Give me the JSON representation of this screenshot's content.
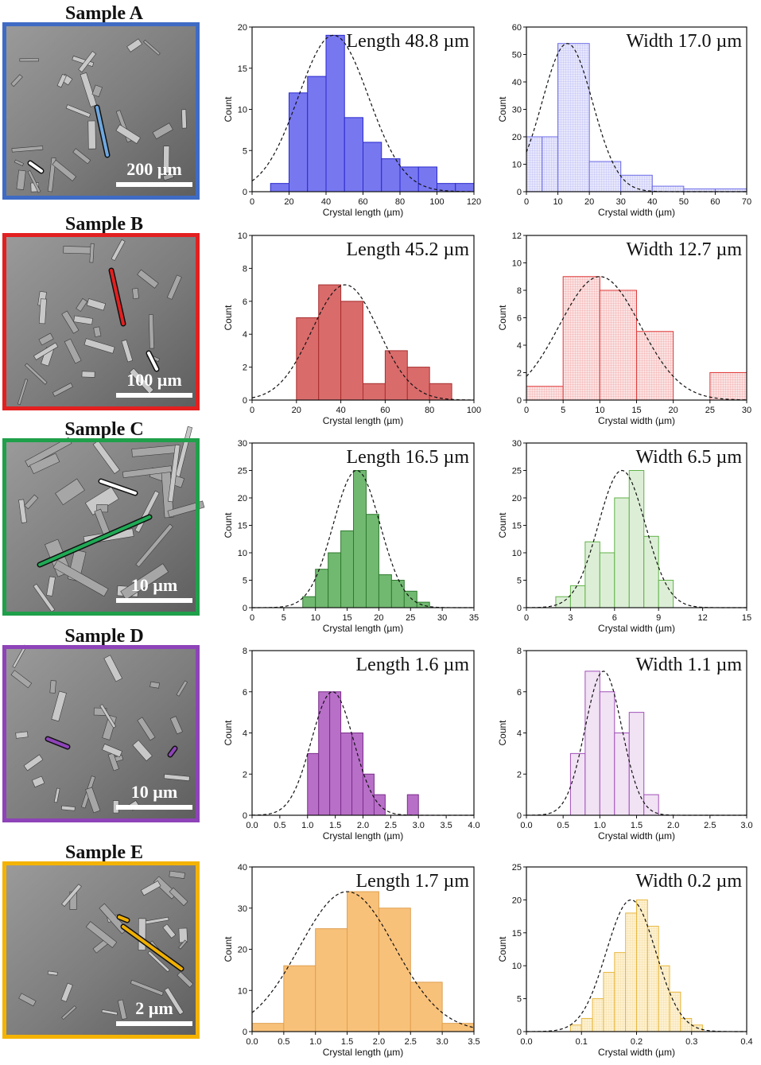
{
  "figure": {
    "ylabel": "Count",
    "xlabel_length": "Crystal length (µm)",
    "xlabel_width": "Crystal width (µm)"
  },
  "samples": [
    {
      "title": "Sample A",
      "color": "#3f6bc4",
      "arrow_color": "#6fa8e0",
      "scale_bar": "200 µm",
      "length": {
        "label": "Length 48.8 µm",
        "fill": "#7777f0",
        "stroke": "#2a2acc",
        "hatch": false,
        "xlim": [
          0,
          120
        ],
        "ylim": [
          0,
          20
        ],
        "xticks": [
          0,
          20,
          40,
          60,
          80,
          100,
          120
        ],
        "yticks": [
          0,
          5,
          10,
          15,
          20
        ],
        "edges": [
          10,
          20,
          30,
          40,
          50,
          60,
          70,
          80,
          90,
          100,
          110,
          120
        ],
        "counts": [
          1,
          12,
          14,
          19,
          9,
          6,
          4,
          3,
          3,
          1,
          1
        ],
        "fit": {
          "mean": 44,
          "sd": 19,
          "peak": 19
        }
      },
      "width": {
        "label": "Width 17.0 µm",
        "fill": "#e8e8fc",
        "stroke": "#6a6ae8",
        "hatch": true,
        "xlim": [
          0,
          70
        ],
        "ylim": [
          0,
          60
        ],
        "xticks": [
          0,
          10,
          20,
          30,
          40,
          50,
          60,
          70
        ],
        "yticks": [
          0,
          10,
          20,
          30,
          40,
          50,
          60
        ],
        "edges": [
          0,
          5,
          10,
          20,
          30,
          40,
          50,
          60,
          70
        ],
        "counts": [
          20,
          20,
          54,
          11,
          6,
          2,
          1,
          1
        ],
        "fit": {
          "mean": 13,
          "sd": 8,
          "peak": 54
        }
      }
    },
    {
      "title": "Sample B",
      "color": "#e32020",
      "arrow_color": "#e32020",
      "scale_bar": "100 µm",
      "length": {
        "label": "Length 45.2 µm",
        "fill": "#d96b6b",
        "stroke": "#a83030",
        "hatch": false,
        "xlim": [
          0,
          100
        ],
        "ylim": [
          0,
          10
        ],
        "xticks": [
          0,
          20,
          40,
          60,
          80,
          100
        ],
        "yticks": [
          0,
          2,
          4,
          6,
          8,
          10
        ],
        "edges": [
          20,
          30,
          40,
          50,
          60,
          70,
          80,
          90
        ],
        "counts": [
          5,
          7,
          6,
          1,
          3,
          2,
          1
        ],
        "fit": {
          "mean": 42,
          "sd": 15,
          "peak": 7
        }
      },
      "width": {
        "label": "Width 12.7 µm",
        "fill": "#fbe3e3",
        "stroke": "#e03a3a",
        "hatch": true,
        "xlim": [
          0,
          30
        ],
        "ylim": [
          0,
          12
        ],
        "xticks": [
          0,
          5,
          10,
          15,
          20,
          25,
          30
        ],
        "yticks": [
          0,
          2,
          4,
          6,
          8,
          10,
          12
        ],
        "edges": [
          0,
          5,
          10,
          15,
          20,
          25,
          30
        ],
        "counts": [
          1,
          9,
          8,
          5,
          0,
          2
        ],
        "fit": {
          "mean": 10,
          "sd": 5.5,
          "peak": 9
        }
      }
    },
    {
      "title": "Sample C",
      "color": "#1fa04a",
      "arrow_color": "#1faa55",
      "scale_bar": "10 µm",
      "length": {
        "label": "Length 16.5 µm",
        "fill": "#71b971",
        "stroke": "#2f7a2f",
        "hatch": false,
        "xlim": [
          0,
          35
        ],
        "ylim": [
          0,
          30
        ],
        "xticks": [
          0,
          5,
          10,
          15,
          20,
          25,
          30,
          35
        ],
        "yticks": [
          0,
          5,
          10,
          15,
          20,
          25,
          30
        ],
        "edges": [
          8,
          10,
          12,
          14,
          16,
          18,
          20,
          22,
          24,
          26,
          28
        ],
        "counts": [
          2,
          7,
          10,
          14,
          25,
          17,
          6,
          5,
          3,
          1
        ],
        "fit": {
          "mean": 16.5,
          "sd": 3.7,
          "peak": 25
        }
      },
      "width": {
        "label": "Width 6.5 µm",
        "fill": "#dcefd6",
        "stroke": "#62b24a",
        "hatch": false,
        "xlim": [
          0,
          15
        ],
        "ylim": [
          0,
          30
        ],
        "xticks": [
          0,
          3,
          6,
          9,
          12,
          15
        ],
        "yticks": [
          0,
          5,
          10,
          15,
          20,
          25,
          30
        ],
        "edges": [
          2,
          3,
          4,
          5,
          6,
          7,
          8,
          9,
          10
        ],
        "counts": [
          2,
          4,
          12,
          10,
          20,
          25,
          13,
          5
        ],
        "fit": {
          "mean": 6.5,
          "sd": 1.6,
          "peak": 25
        }
      }
    },
    {
      "title": "Sample D",
      "color": "#8e44b8",
      "arrow_color": "#8e44b8",
      "scale_bar": "10 µm",
      "length": {
        "label": "Length 1.6 µm",
        "fill": "#b86fc8",
        "stroke": "#7a2f8a",
        "hatch": false,
        "xlim": [
          0,
          4
        ],
        "ylim": [
          0,
          8
        ],
        "xticks": [
          "0.0",
          "0.5",
          "1.0",
          "1.5",
          "2.0",
          "2.5",
          "3.0",
          "3.5",
          "4.0"
        ],
        "yticks": [
          0,
          2,
          4,
          6,
          8
        ],
        "edges": [
          1.0,
          1.2,
          1.4,
          1.6,
          1.8,
          2.0,
          2.2,
          2.4,
          2.6,
          2.8,
          3.0
        ],
        "counts": [
          3,
          6,
          6,
          4,
          4,
          2,
          1,
          0,
          0,
          1
        ],
        "fit": {
          "mean": 1.45,
          "sd": 0.38,
          "peak": 6
        }
      },
      "width": {
        "label": "Width 1.1 µm",
        "fill": "#f1e2f4",
        "stroke": "#a050b8",
        "hatch": false,
        "xlim": [
          0,
          3
        ],
        "ylim": [
          0,
          8
        ],
        "xticks": [
          "0.0",
          "0.5",
          "1.0",
          "1.5",
          "2.0",
          "2.5",
          "3.0"
        ],
        "yticks": [
          0,
          2,
          4,
          6,
          8
        ],
        "edges": [
          0.6,
          0.8,
          1.0,
          1.2,
          1.4,
          1.6,
          1.8
        ],
        "counts": [
          3,
          7,
          6,
          4,
          5,
          1
        ],
        "fit": {
          "mean": 1.05,
          "sd": 0.25,
          "peak": 7
        }
      }
    },
    {
      "title": "Sample E",
      "color": "#f4b300",
      "arrow_color": "#f0b000",
      "scale_bar": "2 µm",
      "length": {
        "label": "Length 1.7 µm",
        "fill": "#f8c17a",
        "stroke": "#e0a050",
        "hatch": false,
        "xlim": [
          0,
          3.5
        ],
        "ylim": [
          0,
          40
        ],
        "xticks": [
          "0.0",
          "0.5",
          "1.0",
          "1.5",
          "2.0",
          "2.5",
          "3.0",
          "3.5"
        ],
        "yticks": [
          0,
          10,
          20,
          30,
          40
        ],
        "edges": [
          0.0,
          0.5,
          1.0,
          1.5,
          2.0,
          2.5,
          3.0,
          3.5
        ],
        "counts": [
          2,
          16,
          25,
          34,
          30,
          12,
          2
        ],
        "fit": {
          "mean": 1.5,
          "sd": 0.75,
          "peak": 34
        }
      },
      "width": {
        "label": "Width 0.2 µm",
        "fill": "#fdf1d2",
        "stroke": "#e8b840",
        "hatch": true,
        "xlim": [
          0,
          0.4
        ],
        "ylim": [
          0,
          25
        ],
        "xticks": [
          "0.0",
          "0.1",
          "0.2",
          "0.3",
          "0.4"
        ],
        "yticks": [
          0,
          5,
          10,
          15,
          20,
          25
        ],
        "edges": [
          0.08,
          0.1,
          0.12,
          0.14,
          0.16,
          0.18,
          0.2,
          0.22,
          0.24,
          0.26,
          0.28,
          0.3,
          0.32
        ],
        "counts": [
          1,
          2,
          5,
          9,
          12,
          18,
          20,
          16,
          10,
          6,
          2,
          1
        ],
        "fit": {
          "mean": 0.19,
          "sd": 0.045,
          "peak": 20
        }
      }
    }
  ],
  "chart_data": [
    {
      "type": "bar",
      "title": "Length 48.8 µm",
      "xlabel": "Crystal length (µm)",
      "ylabel": "Count",
      "bin_edges": [
        10,
        20,
        30,
        40,
        50,
        60,
        70,
        80,
        90,
        100,
        110,
        120
      ],
      "values": [
        1,
        12,
        14,
        19,
        9,
        6,
        4,
        3,
        3,
        1,
        1
      ],
      "xlim": [
        0,
        120
      ],
      "ylim": [
        0,
        20
      ]
    },
    {
      "type": "bar",
      "title": "Width 17.0 µm",
      "xlabel": "Crystal width (µm)",
      "ylabel": "Count",
      "bin_edges": [
        0,
        5,
        10,
        20,
        30,
        40,
        50,
        60,
        70
      ],
      "values": [
        20,
        20,
        54,
        11,
        6,
        2,
        1,
        1
      ],
      "xlim": [
        0,
        70
      ],
      "ylim": [
        0,
        60
      ]
    },
    {
      "type": "bar",
      "title": "Length 45.2 µm",
      "xlabel": "Crystal length (µm)",
      "ylabel": "Count",
      "bin_edges": [
        20,
        30,
        40,
        50,
        60,
        70,
        80,
        90
      ],
      "values": [
        5,
        7,
        6,
        1,
        3,
        2,
        1
      ],
      "xlim": [
        0,
        100
      ],
      "ylim": [
        0,
        10
      ]
    },
    {
      "type": "bar",
      "title": "Width 12.7 µm",
      "xlabel": "Crystal width (µm)",
      "ylabel": "Count",
      "bin_edges": [
        0,
        5,
        10,
        15,
        20,
        25,
        30
      ],
      "values": [
        1,
        9,
        8,
        5,
        0,
        2
      ],
      "xlim": [
        0,
        30
      ],
      "ylim": [
        0,
        12
      ]
    },
    {
      "type": "bar",
      "title": "Length 16.5 µm",
      "xlabel": "Crystal length (µm)",
      "ylabel": "Count",
      "bin_edges": [
        8,
        10,
        12,
        14,
        16,
        18,
        20,
        22,
        24,
        26,
        28
      ],
      "values": [
        2,
        7,
        10,
        14,
        25,
        17,
        6,
        5,
        3,
        1
      ],
      "xlim": [
        0,
        35
      ],
      "ylim": [
        0,
        30
      ]
    },
    {
      "type": "bar",
      "title": "Width 6.5 µm",
      "xlabel": "Crystal width (µm)",
      "ylabel": "Count",
      "bin_edges": [
        2,
        3,
        4,
        5,
        6,
        7,
        8,
        9,
        10
      ],
      "values": [
        2,
        4,
        12,
        10,
        20,
        25,
        13,
        5
      ],
      "xlim": [
        0,
        15
      ],
      "ylim": [
        0,
        30
      ]
    },
    {
      "type": "bar",
      "title": "Length 1.6 µm",
      "xlabel": "Crystal length (µm)",
      "ylabel": "Count",
      "bin_edges": [
        1.0,
        1.2,
        1.4,
        1.6,
        1.8,
        2.0,
        2.2,
        2.4,
        2.6,
        2.8,
        3.0
      ],
      "values": [
        3,
        6,
        6,
        4,
        4,
        2,
        1,
        0,
        0,
        1
      ],
      "xlim": [
        0,
        4
      ],
      "ylim": [
        0,
        8
      ]
    },
    {
      "type": "bar",
      "title": "Width 1.1 µm",
      "xlabel": "Crystal width (µm)",
      "ylabel": "Count",
      "bin_edges": [
        0.6,
        0.8,
        1.0,
        1.2,
        1.4,
        1.6,
        1.8
      ],
      "values": [
        3,
        7,
        6,
        4,
        5,
        1
      ],
      "xlim": [
        0,
        3
      ],
      "ylim": [
        0,
        8
      ]
    },
    {
      "type": "bar",
      "title": "Length 1.7 µm",
      "xlabel": "Crystal length (µm)",
      "ylabel": "Count",
      "bin_edges": [
        0.0,
        0.5,
        1.0,
        1.5,
        2.0,
        2.5,
        3.0,
        3.5
      ],
      "values": [
        2,
        16,
        25,
        34,
        30,
        12,
        2
      ],
      "xlim": [
        0,
        3.5
      ],
      "ylim": [
        0,
        40
      ]
    },
    {
      "type": "bar",
      "title": "Width 0.2 µm",
      "xlabel": "Crystal width (µm)",
      "ylabel": "Count",
      "bin_edges": [
        0.08,
        0.1,
        0.12,
        0.14,
        0.16,
        0.18,
        0.2,
        0.22,
        0.24,
        0.26,
        0.28,
        0.3,
        0.32
      ],
      "values": [
        1,
        2,
        5,
        9,
        12,
        18,
        20,
        16,
        10,
        6,
        2,
        1
      ],
      "xlim": [
        0,
        0.4
      ],
      "ylim": [
        0,
        25
      ]
    }
  ]
}
